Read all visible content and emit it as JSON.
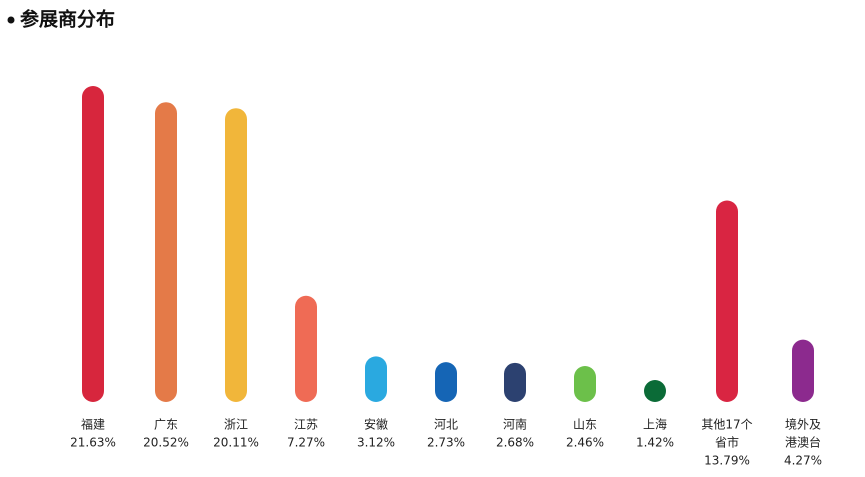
{
  "chart_data": {
    "type": "bar",
    "title": "参展商分布",
    "categories": [
      "福建",
      "广东",
      "浙江",
      "江苏",
      "安徽",
      "河北",
      "河南",
      "山东",
      "上海",
      [
        "其他17个",
        "省市"
      ],
      [
        "境外及",
        "港澳台"
      ]
    ],
    "values": [
      21.63,
      20.52,
      20.11,
      7.27,
      3.12,
      2.73,
      2.68,
      2.46,
      1.42,
      13.79,
      4.27
    ],
    "value_labels": [
      "21.63%",
      "20.52%",
      "20.11%",
      "7.27%",
      "3.12%",
      "2.73%",
      "2.68%",
      "2.46%",
      "1.42%",
      "13.79%",
      "4.27%"
    ],
    "colors": [
      "#d7263d",
      "#e47a48",
      "#f1b63a",
      "#ef6b55",
      "#2aa9e0",
      "#1565b5",
      "#2c4170",
      "#6cc04a",
      "#0b6b37",
      "#d92542",
      "#8c2a8e"
    ]
  }
}
